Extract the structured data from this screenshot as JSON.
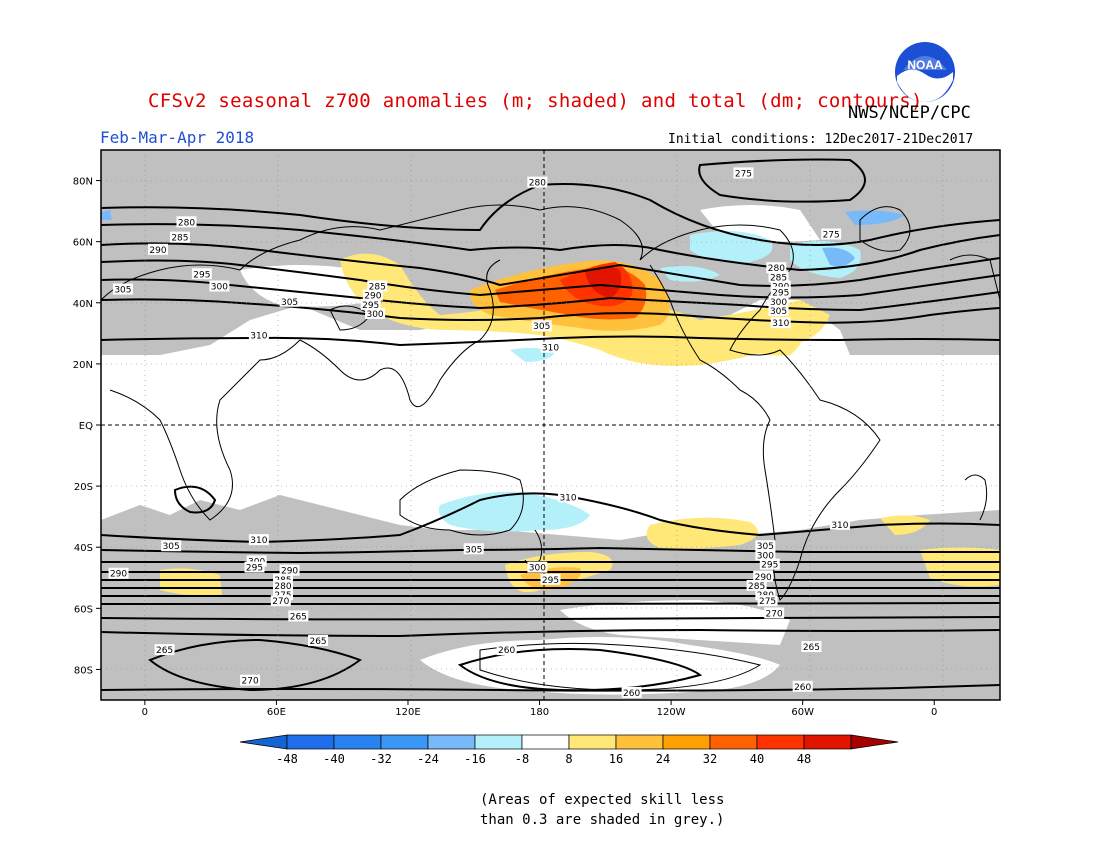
{
  "header": {
    "title": "CFSv2 seasonal z700 anomalies (m; shaded) and total (dm; contours)",
    "agency": "NWS/NCEP/CPC",
    "season": "Feb-Mar-Apr 2018",
    "initial_conditions": "Initial conditions: 12Dec2017-21Dec2017",
    "logo_text": "NOAA"
  },
  "map": {
    "lon_labels": [
      "0",
      "60E",
      "120E",
      "180",
      "120W",
      "60W",
      "0"
    ],
    "lat_labels": [
      "80N",
      "60N",
      "40N",
      "20N",
      "EQ",
      "20S",
      "40S",
      "60S",
      "80S"
    ],
    "contour_labels": [
      {
        "text": "280",
        "lon": 179,
        "lat": 79
      },
      {
        "text": "275",
        "lon": 273,
        "lat": 82
      },
      {
        "text": "280",
        "lon": 19,
        "lat": 66
      },
      {
        "text": "285",
        "lon": 16,
        "lat": 61
      },
      {
        "text": "290",
        "lon": 6,
        "lat": 57
      },
      {
        "text": "295",
        "lon": 26,
        "lat": 49
      },
      {
        "text": "300",
        "lon": 34,
        "lat": 45
      },
      {
        "text": "305",
        "lon": -10,
        "lat": 44
      },
      {
        "text": "305",
        "lon": 66,
        "lat": 40
      },
      {
        "text": "310",
        "lon": 52,
        "lat": 29
      },
      {
        "text": "285",
        "lon": 106,
        "lat": 45
      },
      {
        "text": "290",
        "lon": 104,
        "lat": 42
      },
      {
        "text": "295",
        "lon": 103,
        "lat": 39
      },
      {
        "text": "300",
        "lon": 105,
        "lat": 36
      },
      {
        "text": "305",
        "lon": 181,
        "lat": 32
      },
      {
        "text": "310",
        "lon": 185,
        "lat": 25
      },
      {
        "text": "275",
        "lon": 313,
        "lat": 62
      },
      {
        "text": "280",
        "lon": 288,
        "lat": 51
      },
      {
        "text": "285",
        "lon": 289,
        "lat": 48
      },
      {
        "text": "290",
        "lon": 290,
        "lat": 45
      },
      {
        "text": "295",
        "lon": 290,
        "lat": 43
      },
      {
        "text": "300",
        "lon": 289,
        "lat": 40
      },
      {
        "text": "305",
        "lon": 289,
        "lat": 37
      },
      {
        "text": "310",
        "lon": 290,
        "lat": 33
      },
      {
        "text": "310",
        "lon": 193,
        "lat": -24
      },
      {
        "text": "310",
        "lon": 317,
        "lat": -33
      },
      {
        "text": "310",
        "lon": 52,
        "lat": -38
      },
      {
        "text": "305",
        "lon": 12,
        "lat": -40
      },
      {
        "text": "305",
        "lon": 150,
        "lat": -41
      },
      {
        "text": "305",
        "lon": 283,
        "lat": -40
      },
      {
        "text": "300",
        "lon": 51,
        "lat": -45
      },
      {
        "text": "295",
        "lon": 50,
        "lat": -47
      },
      {
        "text": "300",
        "lon": 179,
        "lat": -47
      },
      {
        "text": "295",
        "lon": 185,
        "lat": -51
      },
      {
        "text": "300",
        "lon": 283,
        "lat": -43
      },
      {
        "text": "295",
        "lon": 285,
        "lat": -46
      },
      {
        "text": "290",
        "lon": 282,
        "lat": -50
      },
      {
        "text": "285",
        "lon": 279,
        "lat": -53
      },
      {
        "text": "280",
        "lon": 283,
        "lat": -56
      },
      {
        "text": "275",
        "lon": 284,
        "lat": -58
      },
      {
        "text": "270",
        "lon": 287,
        "lat": -62
      },
      {
        "text": "290",
        "lon": 66,
        "lat": -48
      },
      {
        "text": "285",
        "lon": 63,
        "lat": -51
      },
      {
        "text": "280",
        "lon": 63,
        "lat": -53
      },
      {
        "text": "275",
        "lon": 63,
        "lat": -56
      },
      {
        "text": "270",
        "lon": 62,
        "lat": -58
      },
      {
        "text": "265",
        "lon": 70,
        "lat": -63
      },
      {
        "text": "290",
        "lon": -12,
        "lat": -49
      },
      {
        "text": "265",
        "lon": 79,
        "lat": -71
      },
      {
        "text": "265",
        "lon": 9,
        "lat": -74
      },
      {
        "text": "270",
        "lon": 48,
        "lat": -84
      },
      {
        "text": "260",
        "lon": 165,
        "lat": -74
      },
      {
        "text": "260",
        "lon": 222,
        "lat": -88
      },
      {
        "text": "265",
        "lon": 304,
        "lat": -73
      },
      {
        "text": "260",
        "lon": 300,
        "lat": -86
      }
    ]
  },
  "colorbar": {
    "labels": [
      "-48",
      "-40",
      "-32",
      "-24",
      "-16",
      "-8",
      "8",
      "16",
      "24",
      "32",
      "40",
      "48"
    ],
    "colors": [
      "#1464d2",
      "#1e6eeb",
      "#2882f0",
      "#3c96f5",
      "#78b9fa",
      "#b4f0fa",
      "#ffffff",
      "#ffe878",
      "#ffc03c",
      "#ffa000",
      "#ff6000",
      "#ff3200",
      "#e11400",
      "#a50000"
    ]
  },
  "footnote": {
    "line1": "(Areas of expected skill less",
    "line2": "than 0.3 are shaded in grey.)"
  }
}
